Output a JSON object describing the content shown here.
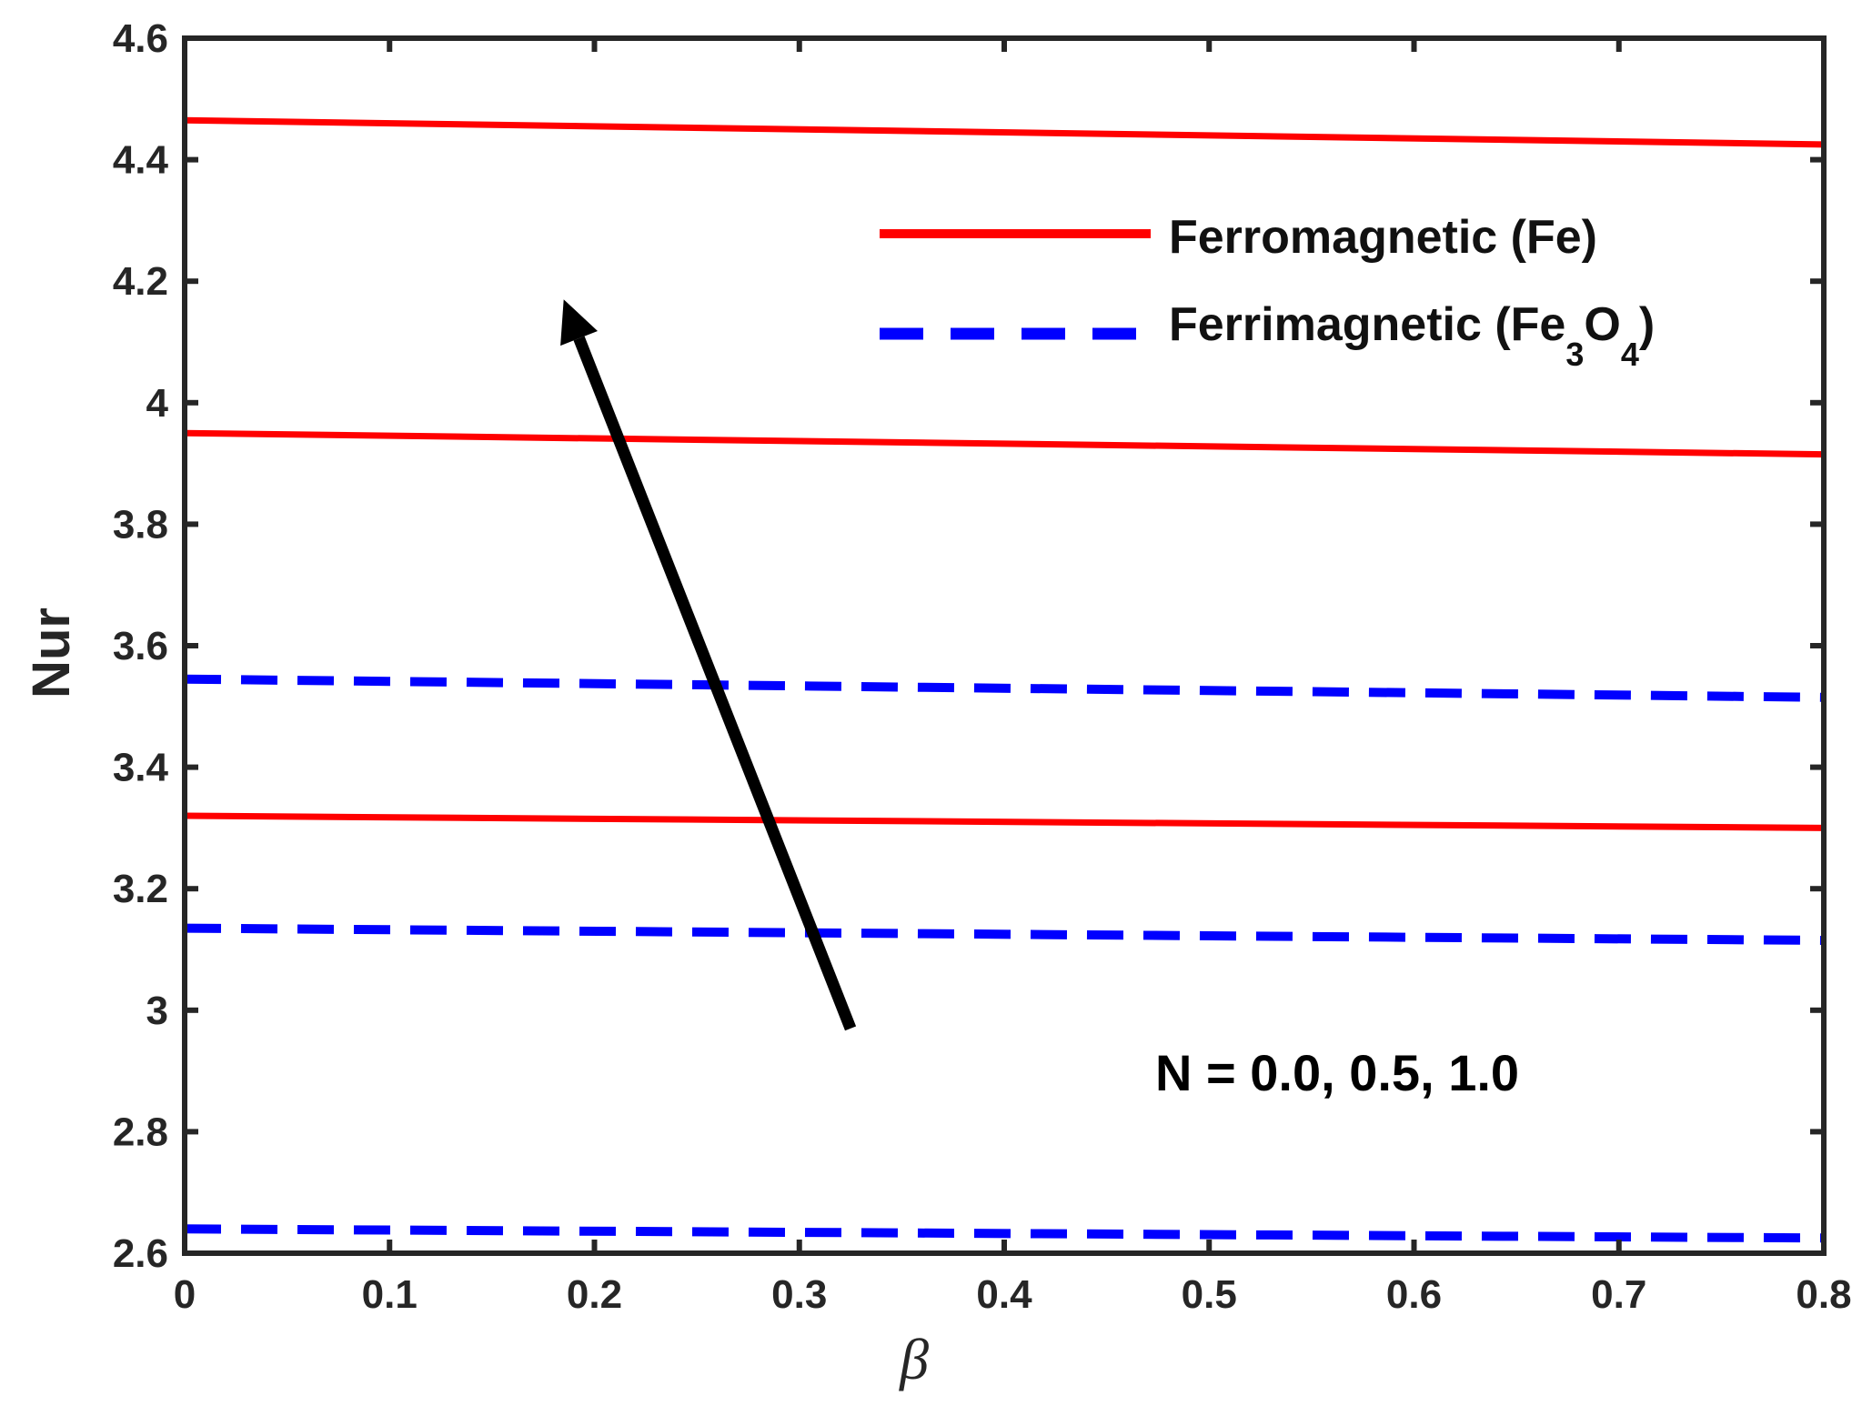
{
  "chart_data": {
    "type": "line",
    "xlabel": "β",
    "ylabel": "Nur",
    "xlim": [
      0,
      0.8
    ],
    "ylim": [
      2.6,
      4.6
    ],
    "xticks": [
      "0",
      "0.1",
      "0.2",
      "0.3",
      "0.4",
      "0.5",
      "0.6",
      "0.7",
      "0.8"
    ],
    "yticks": [
      "2.6",
      "2.8",
      "3",
      "3.2",
      "3.4",
      "3.6",
      "3.8",
      "4",
      "4.2",
      "4.4",
      "4.6"
    ],
    "grid": false,
    "legend_position": "top-right",
    "legend": [
      {
        "label": "Ferromagnetic (Fe)",
        "style": "solid",
        "color": "#ff0000"
      },
      {
        "label_main": "Ferrimagnetic (Fe",
        "sub1": "3",
        "mid": "O",
        "sub2": "4",
        "close": ")",
        "style": "dashed",
        "color": "#0000ff"
      }
    ],
    "series": [
      {
        "group": "Ferromagnetic (Fe)",
        "N": "0.0",
        "style": "solid",
        "color": "#ff0000",
        "x": [
          0,
          0.8
        ],
        "y": [
          3.32,
          3.3
        ]
      },
      {
        "group": "Ferromagnetic (Fe)",
        "N": "0.5",
        "style": "solid",
        "color": "#ff0000",
        "x": [
          0,
          0.8
        ],
        "y": [
          3.95,
          3.915
        ]
      },
      {
        "group": "Ferromagnetic (Fe)",
        "N": "1.0",
        "style": "solid",
        "color": "#ff0000",
        "x": [
          0,
          0.8
        ],
        "y": [
          4.465,
          4.425
        ]
      },
      {
        "group": "Ferrimagnetic (Fe3O4)",
        "N": "0.0",
        "style": "dashed",
        "color": "#0000ff",
        "x": [
          0,
          0.8
        ],
        "y": [
          2.64,
          2.625
        ]
      },
      {
        "group": "Ferrimagnetic (Fe3O4)",
        "N": "0.5",
        "style": "dashed",
        "color": "#0000ff",
        "x": [
          0,
          0.8
        ],
        "y": [
          3.135,
          3.115
        ]
      },
      {
        "group": "Ferrimagnetic (Fe3O4)",
        "N": "1.0",
        "style": "dashed",
        "color": "#0000ff",
        "x": [
          0,
          0.8
        ],
        "y": [
          3.545,
          3.515
        ]
      }
    ],
    "annotation": {
      "text": "N = 0.0, 0.5, 1.0",
      "arrow_from": [
        0.325,
        2.97
      ],
      "arrow_to": [
        0.185,
        4.17
      ]
    }
  }
}
